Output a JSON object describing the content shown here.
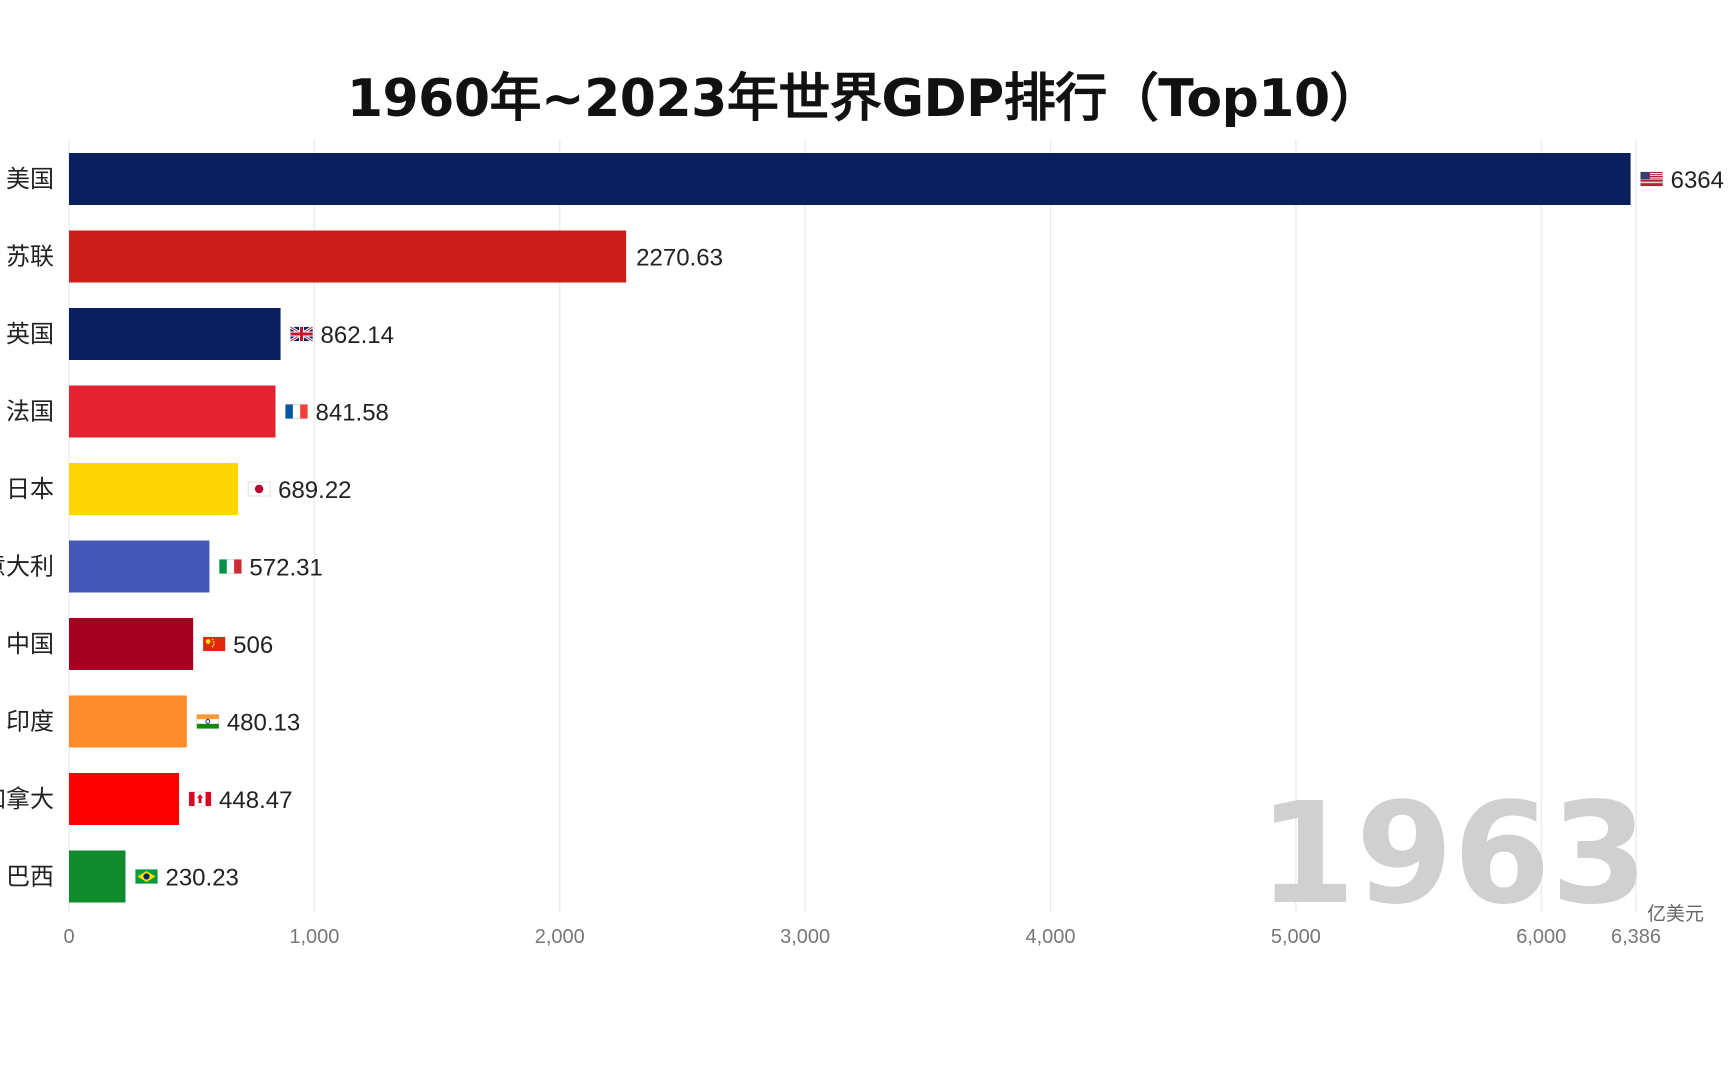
{
  "chart_data": {
    "type": "bar",
    "orientation": "horizontal",
    "title": "1960年~2023年世界GDP排行（Top10）",
    "year": "1963",
    "unit": "亿美元",
    "xlim": [
      0,
      6386
    ],
    "ticks": [
      {
        "value": 0,
        "label": "0"
      },
      {
        "value": 1000,
        "label": "1,000"
      },
      {
        "value": 2000,
        "label": "2,000"
      },
      {
        "value": 3000,
        "label": "3,000"
      },
      {
        "value": 4000,
        "label": "4,000"
      },
      {
        "value": 5000,
        "label": "5,000"
      },
      {
        "value": 6000,
        "label": "6,000"
      },
      {
        "value": 6386,
        "label": "6,386"
      }
    ],
    "bars": [
      {
        "country": "美国",
        "value": 6364,
        "label": "6364",
        "color": "#0a1f5e",
        "flag": "us-flag-icon"
      },
      {
        "country": "苏联",
        "value": 2270.63,
        "label": "2270.63",
        "color": "#cc1f1a",
        "flag": ""
      },
      {
        "country": "英国",
        "value": 862.14,
        "label": "862.14",
        "color": "#0a1f5e",
        "flag": "uk-flag-icon"
      },
      {
        "country": "法国",
        "value": 841.58,
        "label": "841.58",
        "color": "#e32232",
        "flag": "fr-flag-icon"
      },
      {
        "country": "日本",
        "value": 689.22,
        "label": "689.22",
        "color": "#ffd700",
        "flag": "jp-flag-icon"
      },
      {
        "country": "意大利",
        "value": 572.31,
        "label": "572.31",
        "color": "#4558b8",
        "flag": "it-flag-icon"
      },
      {
        "country": "中国",
        "value": 506,
        "label": "506",
        "color": "#a50021",
        "flag": "cn-flag-icon"
      },
      {
        "country": "印度",
        "value": 480.13,
        "label": "480.13",
        "color": "#ff8c2a",
        "flag": "in-flag-icon"
      },
      {
        "country": "加拿大",
        "value": 448.47,
        "label": "448.47",
        "color": "#ff0000",
        "flag": "ca-flag-icon"
      },
      {
        "country": "巴西",
        "value": 230.23,
        "label": "230.23",
        "color": "#118a2e",
        "flag": "br-flag-icon"
      }
    ]
  }
}
